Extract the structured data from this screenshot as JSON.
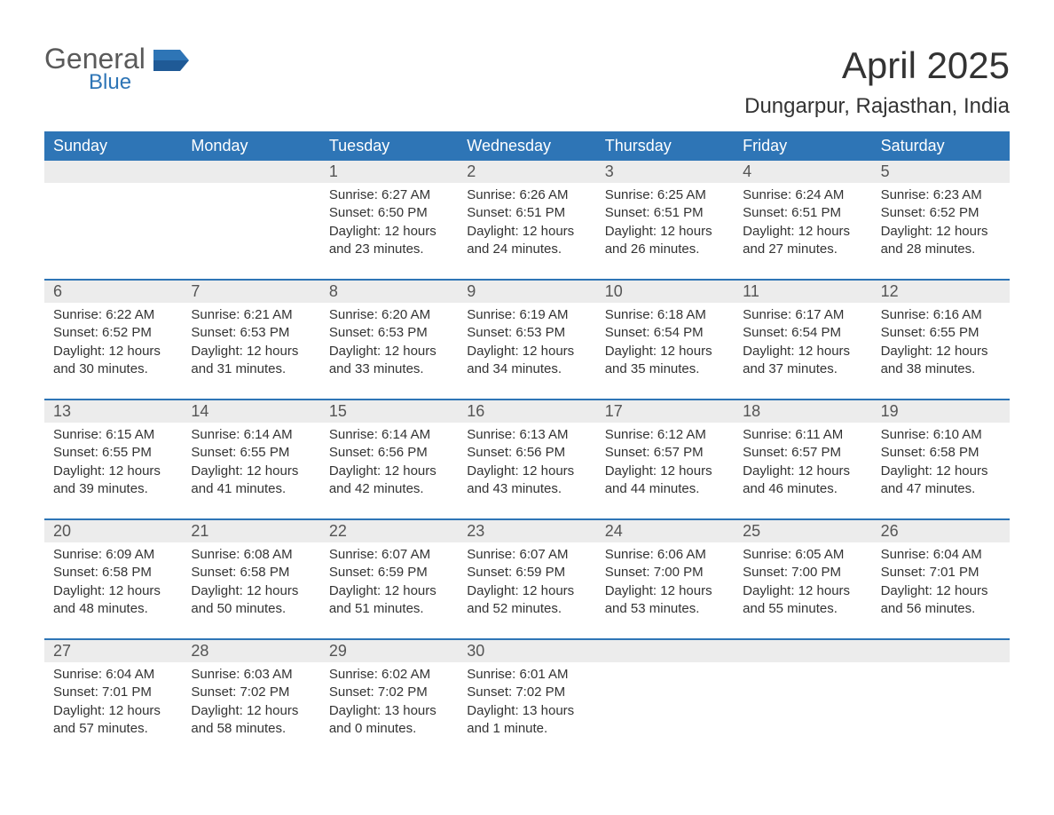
{
  "brand": {
    "name_part1": "General",
    "name_part2": "Blue",
    "text_color": "#5a5a5a",
    "accent_color": "#2e75b6"
  },
  "header": {
    "month_title": "April 2025",
    "location": "Dungarpur, Rajasthan, India"
  },
  "calendar": {
    "header_bg": "#2e75b6",
    "header_text_color": "#ffffff",
    "daynum_bg": "#ececec",
    "row_border_color": "#2e75b6",
    "text_color": "#333333",
    "weekdays": [
      "Sunday",
      "Monday",
      "Tuesday",
      "Wednesday",
      "Thursday",
      "Friday",
      "Saturday"
    ],
    "weeks": [
      {
        "days": [
          {
            "num": "",
            "sunrise": "",
            "sunset": "",
            "daylight": ""
          },
          {
            "num": "",
            "sunrise": "",
            "sunset": "",
            "daylight": ""
          },
          {
            "num": "1",
            "sunrise": "Sunrise: 6:27 AM",
            "sunset": "Sunset: 6:50 PM",
            "daylight": "Daylight: 12 hours and 23 minutes."
          },
          {
            "num": "2",
            "sunrise": "Sunrise: 6:26 AM",
            "sunset": "Sunset: 6:51 PM",
            "daylight": "Daylight: 12 hours and 24 minutes."
          },
          {
            "num": "3",
            "sunrise": "Sunrise: 6:25 AM",
            "sunset": "Sunset: 6:51 PM",
            "daylight": "Daylight: 12 hours and 26 minutes."
          },
          {
            "num": "4",
            "sunrise": "Sunrise: 6:24 AM",
            "sunset": "Sunset: 6:51 PM",
            "daylight": "Daylight: 12 hours and 27 minutes."
          },
          {
            "num": "5",
            "sunrise": "Sunrise: 6:23 AM",
            "sunset": "Sunset: 6:52 PM",
            "daylight": "Daylight: 12 hours and 28 minutes."
          }
        ]
      },
      {
        "days": [
          {
            "num": "6",
            "sunrise": "Sunrise: 6:22 AM",
            "sunset": "Sunset: 6:52 PM",
            "daylight": "Daylight: 12 hours and 30 minutes."
          },
          {
            "num": "7",
            "sunrise": "Sunrise: 6:21 AM",
            "sunset": "Sunset: 6:53 PM",
            "daylight": "Daylight: 12 hours and 31 minutes."
          },
          {
            "num": "8",
            "sunrise": "Sunrise: 6:20 AM",
            "sunset": "Sunset: 6:53 PM",
            "daylight": "Daylight: 12 hours and 33 minutes."
          },
          {
            "num": "9",
            "sunrise": "Sunrise: 6:19 AM",
            "sunset": "Sunset: 6:53 PM",
            "daylight": "Daylight: 12 hours and 34 minutes."
          },
          {
            "num": "10",
            "sunrise": "Sunrise: 6:18 AM",
            "sunset": "Sunset: 6:54 PM",
            "daylight": "Daylight: 12 hours and 35 minutes."
          },
          {
            "num": "11",
            "sunrise": "Sunrise: 6:17 AM",
            "sunset": "Sunset: 6:54 PM",
            "daylight": "Daylight: 12 hours and 37 minutes."
          },
          {
            "num": "12",
            "sunrise": "Sunrise: 6:16 AM",
            "sunset": "Sunset: 6:55 PM",
            "daylight": "Daylight: 12 hours and 38 minutes."
          }
        ]
      },
      {
        "days": [
          {
            "num": "13",
            "sunrise": "Sunrise: 6:15 AM",
            "sunset": "Sunset: 6:55 PM",
            "daylight": "Daylight: 12 hours and 39 minutes."
          },
          {
            "num": "14",
            "sunrise": "Sunrise: 6:14 AM",
            "sunset": "Sunset: 6:55 PM",
            "daylight": "Daylight: 12 hours and 41 minutes."
          },
          {
            "num": "15",
            "sunrise": "Sunrise: 6:14 AM",
            "sunset": "Sunset: 6:56 PM",
            "daylight": "Daylight: 12 hours and 42 minutes."
          },
          {
            "num": "16",
            "sunrise": "Sunrise: 6:13 AM",
            "sunset": "Sunset: 6:56 PM",
            "daylight": "Daylight: 12 hours and 43 minutes."
          },
          {
            "num": "17",
            "sunrise": "Sunrise: 6:12 AM",
            "sunset": "Sunset: 6:57 PM",
            "daylight": "Daylight: 12 hours and 44 minutes."
          },
          {
            "num": "18",
            "sunrise": "Sunrise: 6:11 AM",
            "sunset": "Sunset: 6:57 PM",
            "daylight": "Daylight: 12 hours and 46 minutes."
          },
          {
            "num": "19",
            "sunrise": "Sunrise: 6:10 AM",
            "sunset": "Sunset: 6:58 PM",
            "daylight": "Daylight: 12 hours and 47 minutes."
          }
        ]
      },
      {
        "days": [
          {
            "num": "20",
            "sunrise": "Sunrise: 6:09 AM",
            "sunset": "Sunset: 6:58 PM",
            "daylight": "Daylight: 12 hours and 48 minutes."
          },
          {
            "num": "21",
            "sunrise": "Sunrise: 6:08 AM",
            "sunset": "Sunset: 6:58 PM",
            "daylight": "Daylight: 12 hours and 50 minutes."
          },
          {
            "num": "22",
            "sunrise": "Sunrise: 6:07 AM",
            "sunset": "Sunset: 6:59 PM",
            "daylight": "Daylight: 12 hours and 51 minutes."
          },
          {
            "num": "23",
            "sunrise": "Sunrise: 6:07 AM",
            "sunset": "Sunset: 6:59 PM",
            "daylight": "Daylight: 12 hours and 52 minutes."
          },
          {
            "num": "24",
            "sunrise": "Sunrise: 6:06 AM",
            "sunset": "Sunset: 7:00 PM",
            "daylight": "Daylight: 12 hours and 53 minutes."
          },
          {
            "num": "25",
            "sunrise": "Sunrise: 6:05 AM",
            "sunset": "Sunset: 7:00 PM",
            "daylight": "Daylight: 12 hours and 55 minutes."
          },
          {
            "num": "26",
            "sunrise": "Sunrise: 6:04 AM",
            "sunset": "Sunset: 7:01 PM",
            "daylight": "Daylight: 12 hours and 56 minutes."
          }
        ]
      },
      {
        "days": [
          {
            "num": "27",
            "sunrise": "Sunrise: 6:04 AM",
            "sunset": "Sunset: 7:01 PM",
            "daylight": "Daylight: 12 hours and 57 minutes."
          },
          {
            "num": "28",
            "sunrise": "Sunrise: 6:03 AM",
            "sunset": "Sunset: 7:02 PM",
            "daylight": "Daylight: 12 hours and 58 minutes."
          },
          {
            "num": "29",
            "sunrise": "Sunrise: 6:02 AM",
            "sunset": "Sunset: 7:02 PM",
            "daylight": "Daylight: 13 hours and 0 minutes."
          },
          {
            "num": "30",
            "sunrise": "Sunrise: 6:01 AM",
            "sunset": "Sunset: 7:02 PM",
            "daylight": "Daylight: 13 hours and 1 minute."
          },
          {
            "num": "",
            "sunrise": "",
            "sunset": "",
            "daylight": ""
          },
          {
            "num": "",
            "sunrise": "",
            "sunset": "",
            "daylight": ""
          },
          {
            "num": "",
            "sunrise": "",
            "sunset": "",
            "daylight": ""
          }
        ]
      }
    ]
  }
}
